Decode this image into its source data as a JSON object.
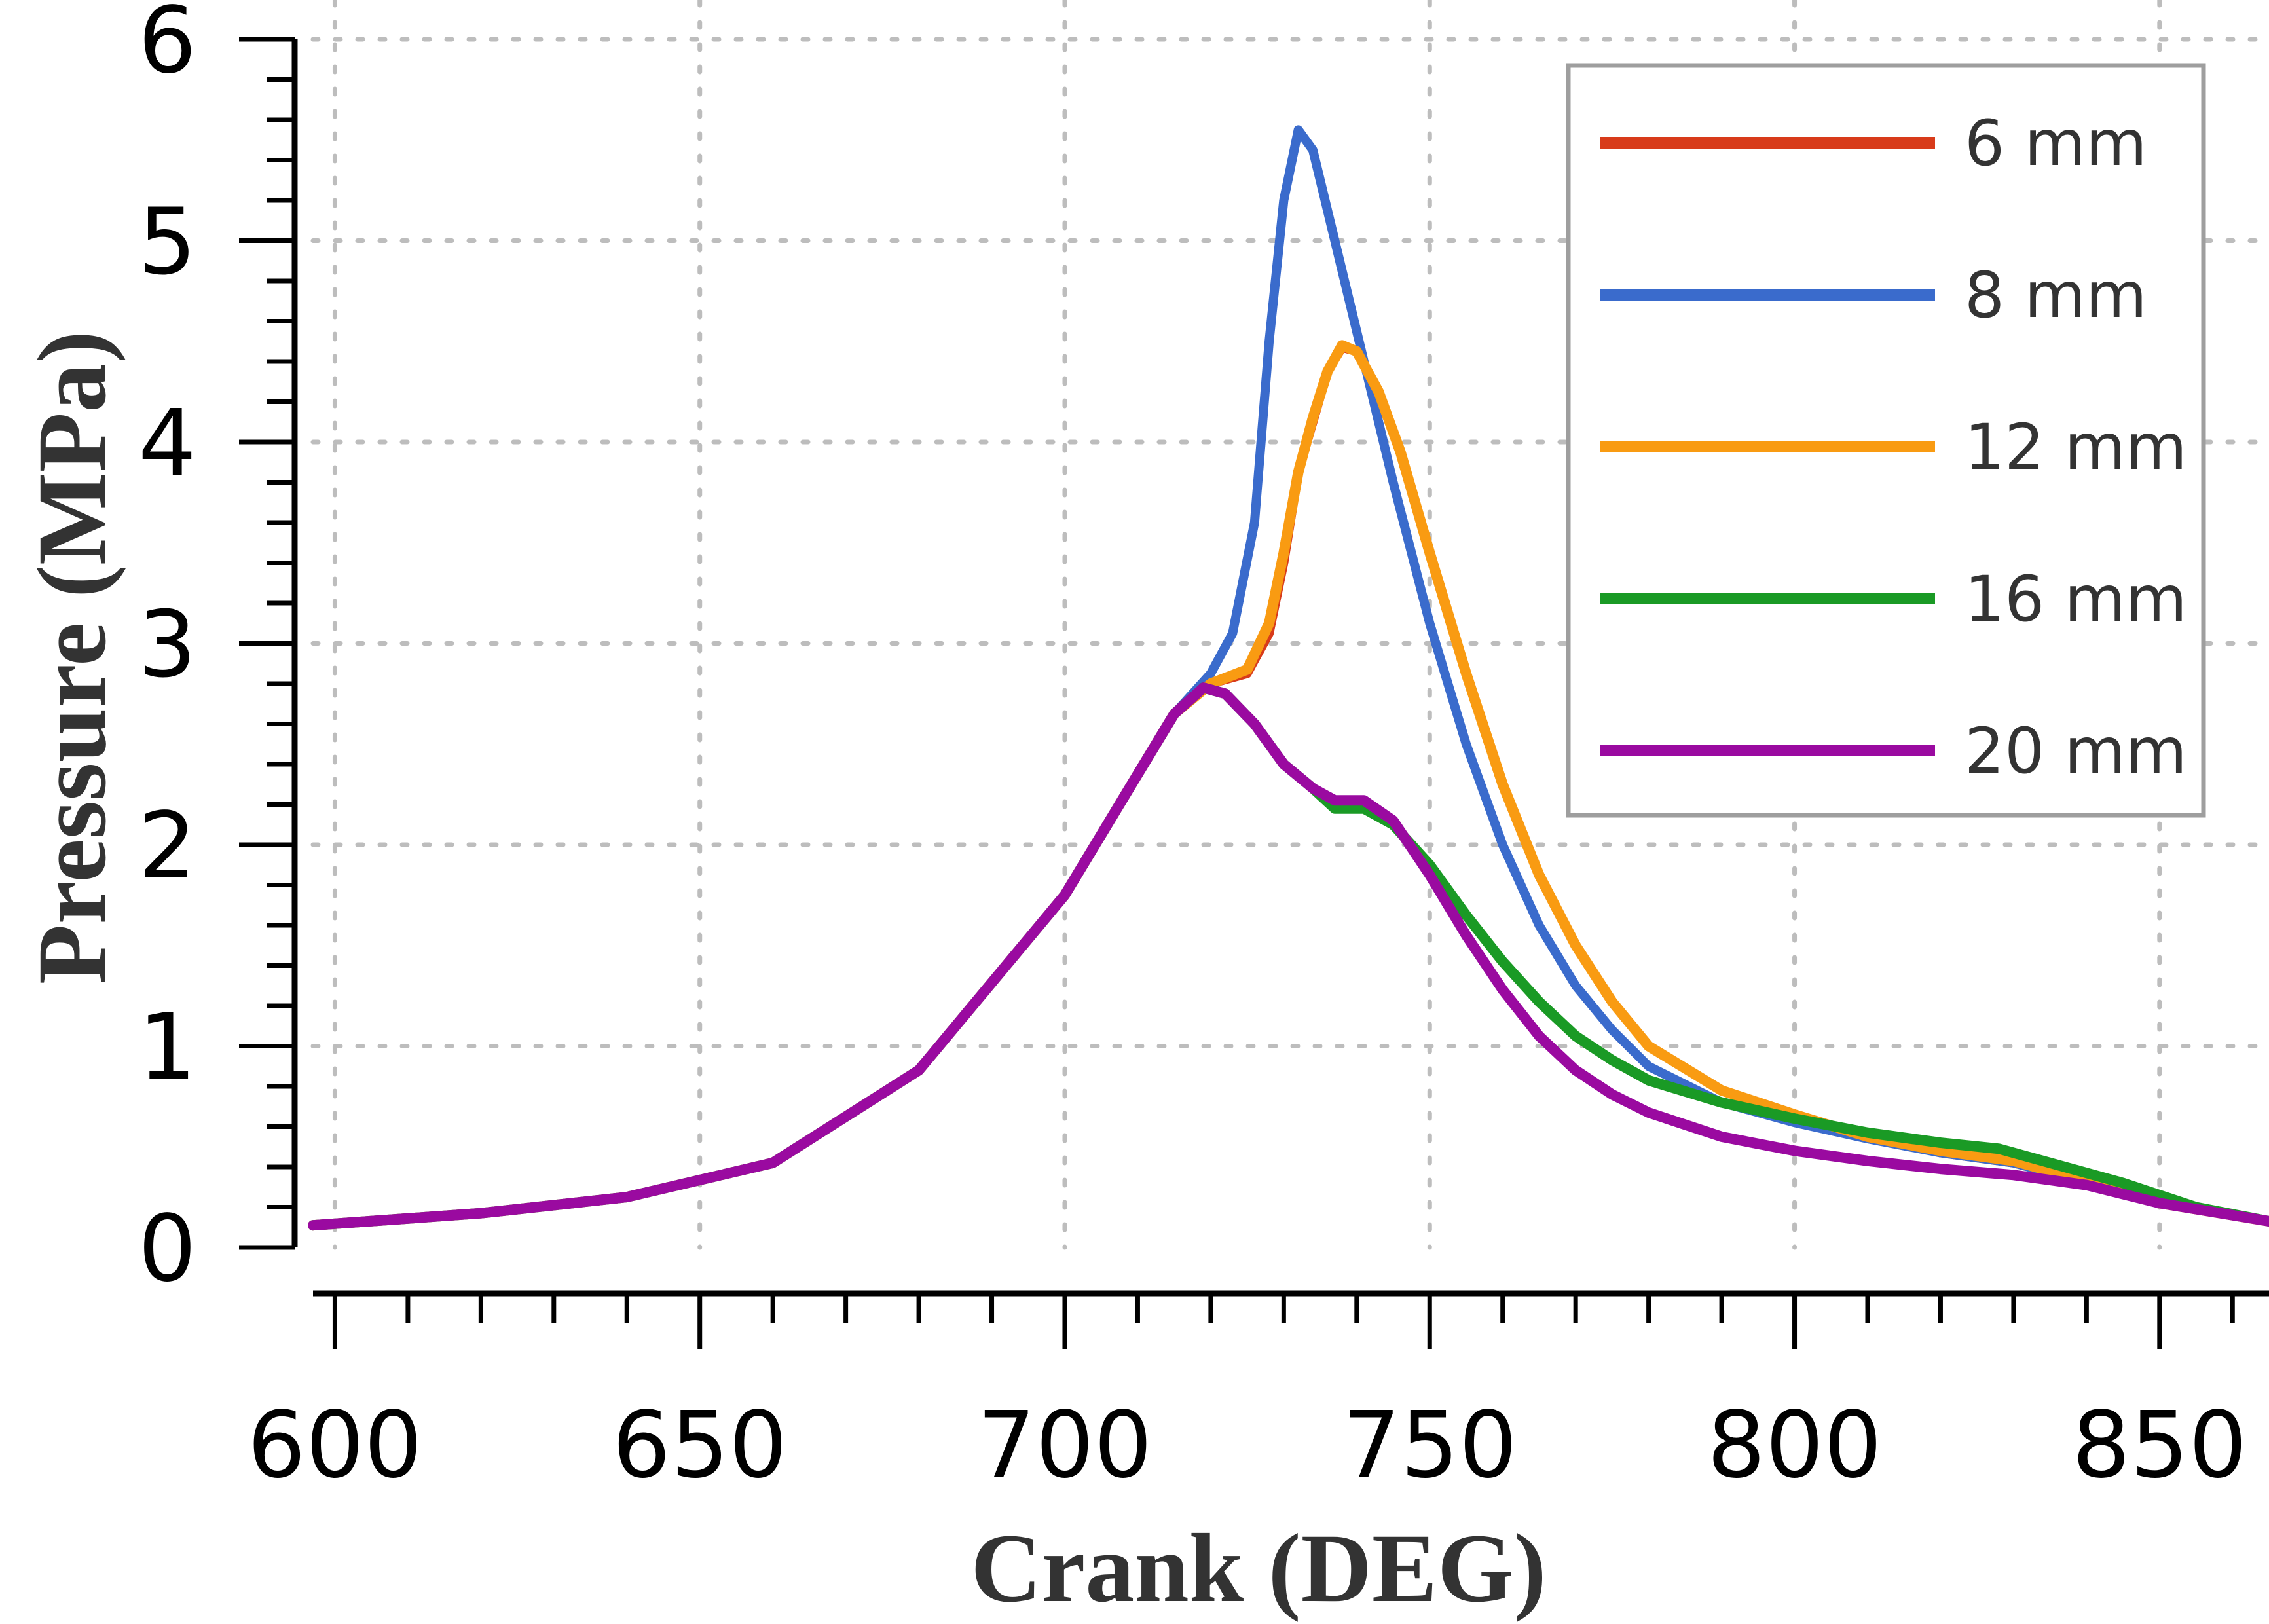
{
  "chart_data": {
    "type": "line",
    "title": "",
    "xlabel": "Crank (DEG)",
    "ylabel": "Pressure (MPa)",
    "xlim": [
      597,
      865
    ],
    "ylim": [
      0,
      6
    ],
    "xticks": [
      600,
      650,
      700,
      750,
      800,
      850
    ],
    "yticks": [
      0,
      1,
      2,
      3,
      4,
      5,
      6
    ],
    "grid": true,
    "legend_position": "top-right",
    "series": [
      {
        "name": "6 mm",
        "color": "#d83b1a",
        "points": [
          [
            597,
            0.11
          ],
          [
            620,
            0.17
          ],
          [
            640,
            0.25
          ],
          [
            660,
            0.42
          ],
          [
            680,
            0.88
          ],
          [
            700,
            1.75
          ],
          [
            710,
            2.35
          ],
          [
            715,
            2.65
          ],
          [
            720,
            2.8
          ],
          [
            725,
            2.85
          ],
          [
            728,
            3.05
          ],
          [
            730,
            3.4
          ],
          [
            732,
            3.85
          ],
          [
            734,
            4.1
          ],
          [
            736,
            4.35
          ],
          [
            738,
            4.47
          ],
          [
            740,
            4.45
          ],
          [
            743,
            4.25
          ],
          [
            746,
            3.95
          ],
          [
            750,
            3.45
          ],
          [
            755,
            2.85
          ],
          [
            760,
            2.3
          ],
          [
            765,
            1.85
          ],
          [
            770,
            1.5
          ],
          [
            775,
            1.22
          ],
          [
            780,
            1.0
          ],
          [
            790,
            0.78
          ],
          [
            800,
            0.66
          ],
          [
            810,
            0.55
          ],
          [
            820,
            0.47
          ],
          [
            830,
            0.42
          ],
          [
            840,
            0.32
          ],
          [
            850,
            0.22
          ],
          [
            865,
            0.13
          ]
        ]
      },
      {
        "name": "8 mm",
        "color": "#3a6bcc",
        "points": [
          [
            597,
            0.11
          ],
          [
            620,
            0.17
          ],
          [
            640,
            0.25
          ],
          [
            660,
            0.42
          ],
          [
            680,
            0.88
          ],
          [
            700,
            1.75
          ],
          [
            710,
            2.35
          ],
          [
            715,
            2.65
          ],
          [
            720,
            2.85
          ],
          [
            723,
            3.05
          ],
          [
            726,
            3.6
          ],
          [
            728,
            4.5
          ],
          [
            730,
            5.2
          ],
          [
            732,
            5.55
          ],
          [
            734,
            5.45
          ],
          [
            737,
            5.0
          ],
          [
            740,
            4.55
          ],
          [
            745,
            3.8
          ],
          [
            750,
            3.1
          ],
          [
            755,
            2.5
          ],
          [
            760,
            2.0
          ],
          [
            765,
            1.6
          ],
          [
            770,
            1.3
          ],
          [
            775,
            1.08
          ],
          [
            780,
            0.9
          ],
          [
            790,
            0.72
          ],
          [
            800,
            0.62
          ],
          [
            810,
            0.54
          ],
          [
            820,
            0.47
          ],
          [
            830,
            0.42
          ],
          [
            840,
            0.32
          ],
          [
            850,
            0.22
          ],
          [
            865,
            0.13
          ]
        ]
      },
      {
        "name": "12 mm",
        "color": "#f99b12",
        "points": [
          [
            597,
            0.11
          ],
          [
            620,
            0.17
          ],
          [
            640,
            0.25
          ],
          [
            660,
            0.42
          ],
          [
            680,
            0.88
          ],
          [
            700,
            1.75
          ],
          [
            710,
            2.35
          ],
          [
            715,
            2.65
          ],
          [
            720,
            2.8
          ],
          [
            725,
            2.87
          ],
          [
            728,
            3.1
          ],
          [
            730,
            3.45
          ],
          [
            732,
            3.85
          ],
          [
            734,
            4.12
          ],
          [
            736,
            4.35
          ],
          [
            738,
            4.48
          ],
          [
            740,
            4.45
          ],
          [
            743,
            4.25
          ],
          [
            746,
            3.95
          ],
          [
            750,
            3.45
          ],
          [
            755,
            2.85
          ],
          [
            760,
            2.3
          ],
          [
            765,
            1.85
          ],
          [
            770,
            1.5
          ],
          [
            775,
            1.22
          ],
          [
            780,
            1.0
          ],
          [
            790,
            0.78
          ],
          [
            800,
            0.66
          ],
          [
            810,
            0.55
          ],
          [
            820,
            0.48
          ],
          [
            830,
            0.43
          ],
          [
            840,
            0.33
          ],
          [
            850,
            0.22
          ],
          [
            865,
            0.13
          ]
        ]
      },
      {
        "name": "16 mm",
        "color": "#1a9a25",
        "points": [
          [
            597,
            0.11
          ],
          [
            620,
            0.17
          ],
          [
            640,
            0.25
          ],
          [
            660,
            0.42
          ],
          [
            680,
            0.88
          ],
          [
            700,
            1.75
          ],
          [
            710,
            2.35
          ],
          [
            715,
            2.65
          ],
          [
            719,
            2.78
          ],
          [
            722,
            2.75
          ],
          [
            726,
            2.6
          ],
          [
            730,
            2.4
          ],
          [
            734,
            2.28
          ],
          [
            737,
            2.18
          ],
          [
            741,
            2.18
          ],
          [
            745,
            2.1
          ],
          [
            750,
            1.9
          ],
          [
            755,
            1.65
          ],
          [
            760,
            1.42
          ],
          [
            765,
            1.22
          ],
          [
            770,
            1.05
          ],
          [
            775,
            0.93
          ],
          [
            780,
            0.83
          ],
          [
            790,
            0.72
          ],
          [
            800,
            0.64
          ],
          [
            810,
            0.57
          ],
          [
            820,
            0.52
          ],
          [
            828,
            0.49
          ],
          [
            835,
            0.42
          ],
          [
            845,
            0.32
          ],
          [
            855,
            0.2
          ],
          [
            865,
            0.13
          ]
        ]
      },
      {
        "name": "20 mm",
        "color": "#9a0aa0",
        "points": [
          [
            597,
            0.11
          ],
          [
            620,
            0.17
          ],
          [
            640,
            0.25
          ],
          [
            660,
            0.42
          ],
          [
            680,
            0.88
          ],
          [
            700,
            1.75
          ],
          [
            710,
            2.35
          ],
          [
            715,
            2.65
          ],
          [
            719,
            2.78
          ],
          [
            722,
            2.75
          ],
          [
            726,
            2.6
          ],
          [
            730,
            2.4
          ],
          [
            734,
            2.28
          ],
          [
            737,
            2.22
          ],
          [
            741,
            2.22
          ],
          [
            745,
            2.12
          ],
          [
            750,
            1.85
          ],
          [
            755,
            1.55
          ],
          [
            760,
            1.28
          ],
          [
            765,
            1.05
          ],
          [
            770,
            0.88
          ],
          [
            775,
            0.76
          ],
          [
            780,
            0.67
          ],
          [
            790,
            0.55
          ],
          [
            800,
            0.48
          ],
          [
            810,
            0.43
          ],
          [
            820,
            0.39
          ],
          [
            830,
            0.36
          ],
          [
            840,
            0.31
          ],
          [
            850,
            0.22
          ],
          [
            865,
            0.13
          ]
        ]
      }
    ]
  }
}
